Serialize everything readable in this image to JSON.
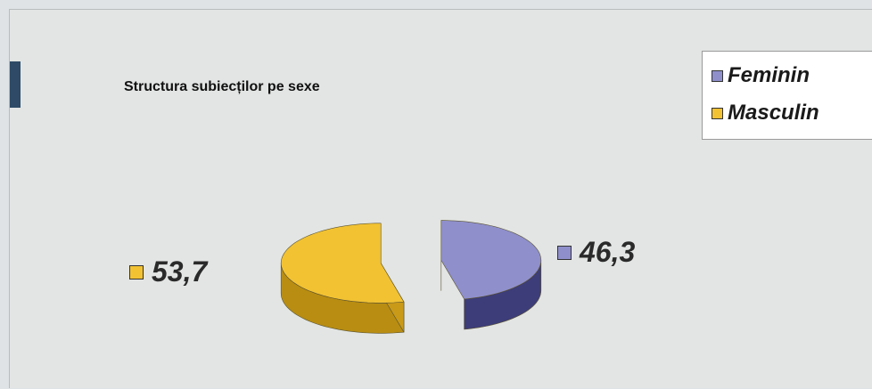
{
  "chart_data": {
    "type": "pie",
    "title": "Structura subiecților pe sexe",
    "legend_position": "top-right",
    "slices": [
      {
        "name": "Feminin",
        "value": 46.3,
        "label": "46,3",
        "color": "#8f8fcc",
        "side_color": "#3d3d7a"
      },
      {
        "name": "Masculin",
        "value": 53.7,
        "label": "53,7",
        "color": "#f2c232",
        "side_color": "#b88d12"
      }
    ]
  }
}
